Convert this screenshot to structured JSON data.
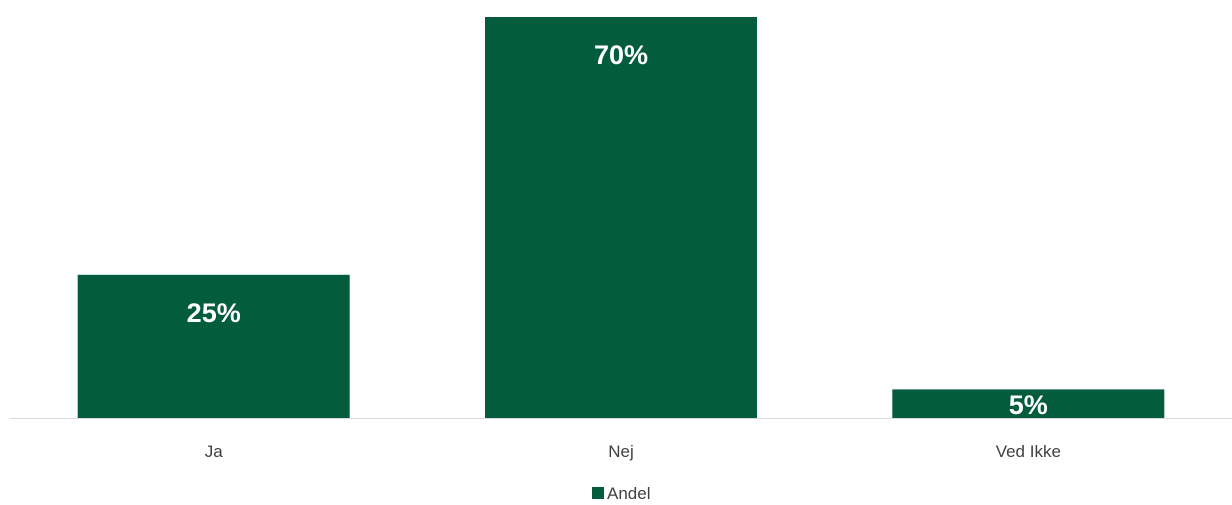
{
  "chart_data": {
    "type": "bar",
    "categories": [
      "Ja",
      "Nej",
      "Ved Ikke"
    ],
    "series": [
      {
        "name": "Andel",
        "values": [
          25,
          70,
          5
        ],
        "labels": [
          "25%",
          "70%",
          "5%"
        ],
        "color": "#035c3c"
      }
    ],
    "ylim": [
      0,
      70
    ],
    "grid": false,
    "legend": "bottom-center",
    "axis_color": "#d9d9d9"
  }
}
